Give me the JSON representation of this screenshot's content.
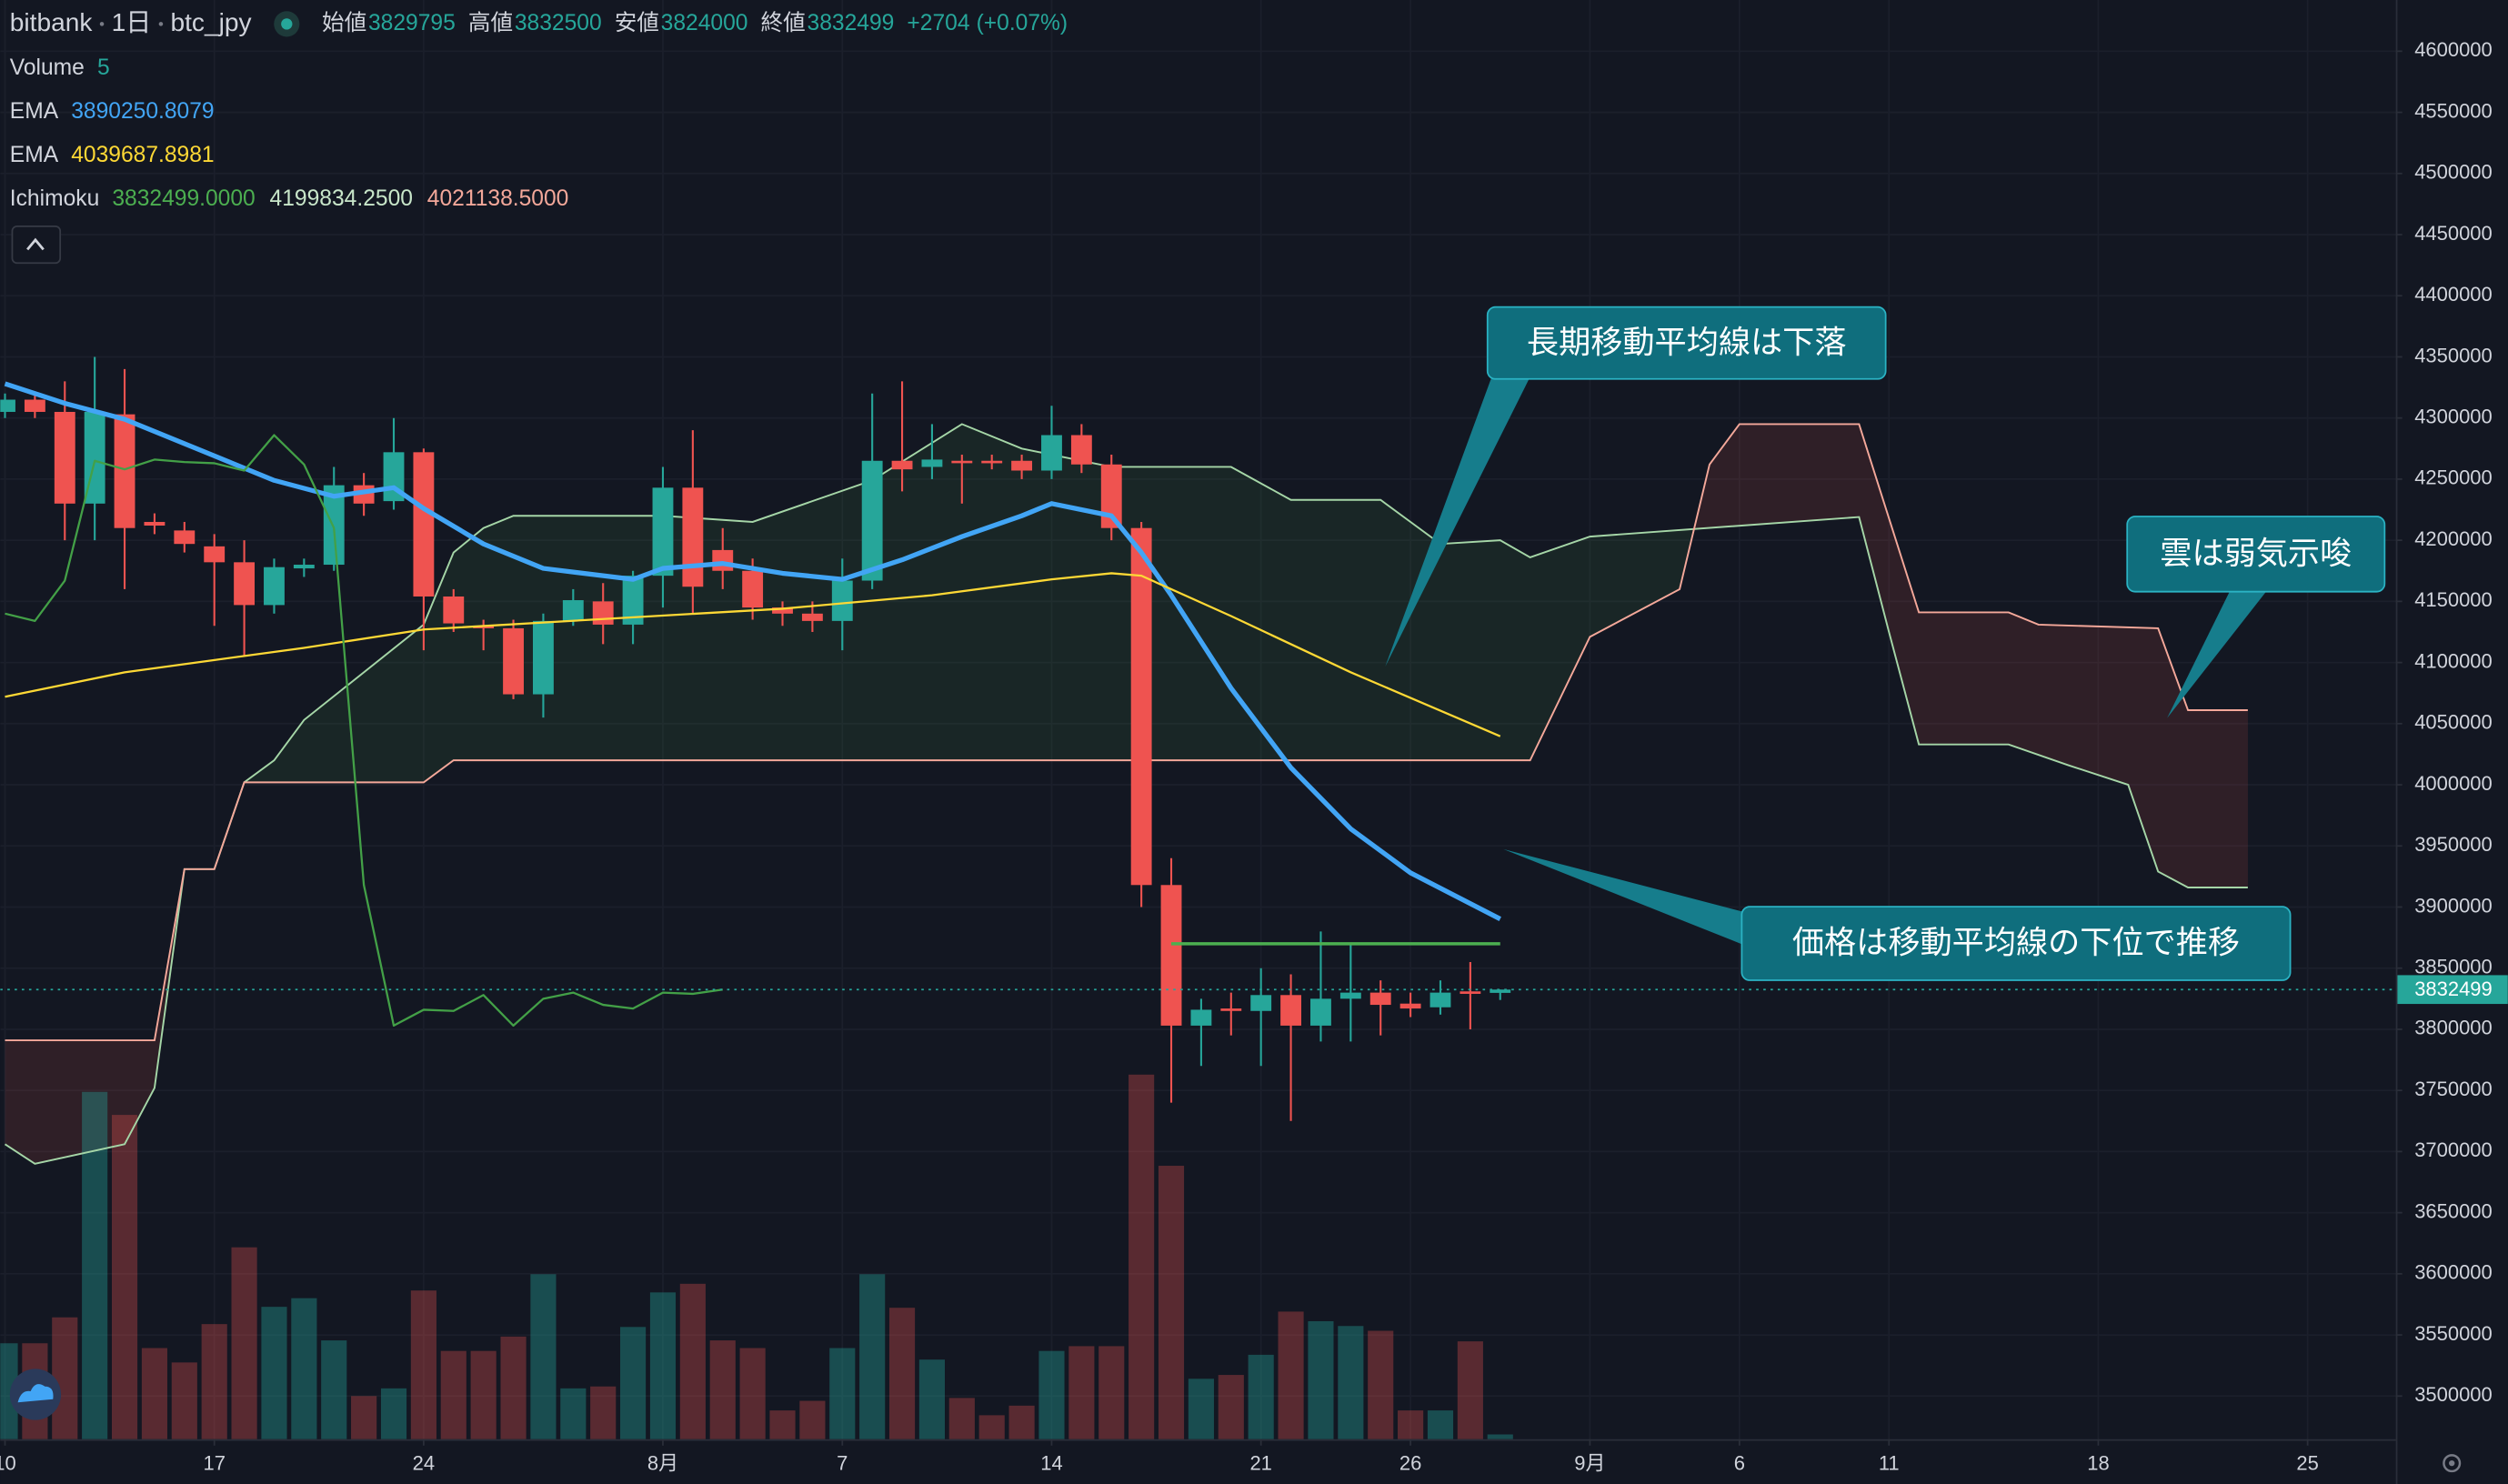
{
  "chart_data": {
    "type": "candlestick",
    "header": {
      "symbol": "bitbank",
      "interval": "1日",
      "pair": "btc_jpy",
      "ohlc": [
        {
          "name": "始値",
          "value": 3829795
        },
        {
          "name": "高値",
          "value": 3832500
        },
        {
          "name": "安値",
          "value": 3824000
        },
        {
          "name": "終値",
          "value": 3832499
        }
      ],
      "change": {
        "value": 2704,
        "label": "+2704"
      },
      "change_pct": {
        "value": 0.07,
        "label": "(+0.07%)"
      }
    },
    "indicators": [
      {
        "name": "Volume",
        "values": [
          5
        ],
        "colors": [
          "#26a69a"
        ]
      },
      {
        "name": "EMA",
        "values": [
          {
            "value": 3890250.8079,
            "label": "3890250.8079"
          }
        ],
        "colors": [
          "#42a5f5"
        ]
      },
      {
        "name": "EMA",
        "values": [
          {
            "value": 4039687.8981,
            "label": "4039687.8981"
          }
        ],
        "colors": [
          "#fdd835"
        ]
      },
      {
        "name": "Ichimoku",
        "values": [
          {
            "value": 3832499,
            "label": "3832499.0000"
          },
          {
            "value": 4199834.25,
            "label": "4199834.2500"
          },
          {
            "value": 4021138.5,
            "label": "4021138.5000"
          }
        ],
        "colors": [
          "#4caf50",
          "#c8e6c9",
          "#f4a89a"
        ]
      }
    ],
    "x": [
      10,
      11,
      12,
      13,
      14,
      15,
      16,
      17,
      18,
      19,
      20,
      21,
      22,
      23,
      24,
      25,
      26,
      27,
      28,
      29,
      30,
      31,
      32,
      33,
      34,
      35,
      36,
      37,
      38,
      39,
      40,
      41,
      42,
      43,
      44,
      45,
      46,
      47,
      48,
      49,
      50,
      51,
      52,
      53,
      54,
      55,
      56,
      57,
      58,
      59,
      60
    ],
    "open": [
      4305000,
      4315000,
      4305000,
      4230000,
      4303000,
      4215000,
      4208000,
      4195000,
      4182000,
      4147000,
      4177000,
      4180000,
      4245000,
      4232000,
      4272000,
      4154000,
      4130000,
      4128000,
      4074000,
      4134000,
      4150000,
      4131000,
      4171000,
      4243000,
      4192000,
      4175000,
      4145000,
      4140000,
      4134000,
      4167000,
      4265000,
      4260000,
      4265000,
      4265000,
      4265000,
      4257000,
      4286000,
      4262000,
      4210000,
      3918000,
      3803000,
      3817000,
      3815000,
      3828000,
      3803000,
      3825000,
      3830000,
      3821000,
      3818000,
      3831000,
      3829795
    ],
    "high": [
      4320000,
      4320000,
      4330000,
      4350000,
      4340000,
      4222000,
      4215000,
      4205000,
      4200000,
      4185000,
      4185000,
      4260000,
      4255000,
      4300000,
      4275000,
      4160000,
      4135000,
      4135000,
      4140000,
      4160000,
      4165000,
      4175000,
      4260000,
      4290000,
      4210000,
      4185000,
      4150000,
      4150000,
      4185000,
      4320000,
      4330000,
      4295000,
      4270000,
      4270000,
      4270000,
      4310000,
      4295000,
      4270000,
      4215000,
      3940000,
      3825000,
      3830000,
      3850000,
      3845000,
      3880000,
      3870000,
      3840000,
      3830000,
      3840000,
      3855000,
      3832500
    ],
    "low": [
      4300000,
      4300000,
      4200000,
      4200000,
      4160000,
      4205000,
      4190000,
      4130000,
      4105000,
      4140000,
      4170000,
      4175000,
      4220000,
      4225000,
      4110000,
      4125000,
      4110000,
      4070000,
      4055000,
      4130000,
      4115000,
      4115000,
      4145000,
      4140000,
      4160000,
      4135000,
      4130000,
      4125000,
      4110000,
      4160000,
      4240000,
      4250000,
      4230000,
      4258000,
      4250000,
      4250000,
      4255000,
      4200000,
      3900000,
      3740000,
      3770000,
      3795000,
      3770000,
      3725000,
      3790000,
      3790000,
      3795000,
      3810000,
      3812000,
      3800000,
      3824000
    ],
    "close": [
      4315000,
      4305000,
      4230000,
      4305000,
      4210000,
      4212000,
      4197000,
      4182000,
      4147000,
      4178000,
      4180000,
      4245000,
      4230000,
      4272000,
      4154000,
      4132000,
      4128000,
      4074000,
      4134000,
      4151000,
      4131000,
      4171000,
      4243000,
      4162000,
      4175000,
      4145000,
      4140000,
      4134000,
      4167000,
      4265000,
      4258000,
      4266000,
      4264000,
      4263000,
      4257000,
      4286000,
      4262000,
      4210000,
      3918000,
      3803000,
      3816000,
      3815000,
      3828000,
      3803000,
      3825000,
      3830000,
      3820000,
      3817000,
      3830000,
      3829000,
      3832499
    ],
    "volume": [
      100,
      100,
      127,
      362,
      338,
      95,
      80,
      120,
      200,
      138,
      147,
      103,
      45,
      53,
      155,
      92,
      92,
      107,
      172,
      53,
      55,
      117,
      153,
      162,
      103,
      95,
      30,
      40,
      95,
      172,
      137,
      83,
      43,
      25,
      35,
      92,
      97,
      97,
      380,
      285,
      63,
      67,
      88,
      133,
      123,
      118,
      113,
      30,
      30,
      102,
      5
    ],
    "up_color": "#26a69a",
    "down_color": "#ef5350",
    "volume_up_color": "rgba(38,166,154,0.38)",
    "volume_down_color": "rgba(239,83,80,0.32)",
    "volume_lim": [
      0,
      1500
    ],
    "lines": [
      {
        "color": "#42a5f5",
        "width": 3,
        "x": [
          10,
          12,
          14,
          17,
          19,
          21,
          23,
          24,
          26,
          28,
          31,
          32,
          34,
          36,
          38,
          40,
          42,
          44,
          45,
          47,
          48,
          49,
          51,
          53,
          55,
          57,
          60
        ],
        "values": [
          4328000,
          4312000,
          4299000,
          4269000,
          4249000,
          4236000,
          4243000,
          4226000,
          4197000,
          4177000,
          4168000,
          4177000,
          4181000,
          4173000,
          4168000,
          4184000,
          4203000,
          4220000,
          4230000,
          4220000,
          4190000,
          4155000,
          4079000,
          4014000,
          3964000,
          3928000,
          3890251
        ]
      },
      {
        "color": "#fdd835",
        "width": 1.3,
        "x": [
          10,
          14,
          20,
          24,
          31,
          36,
          41,
          45,
          47,
          48,
          51,
          55,
          60
        ],
        "values": [
          4072000,
          4092000,
          4112000,
          4127000,
          4137000,
          4144000,
          4155000,
          4168000,
          4173000,
          4171000,
          4138000,
          4092000,
          4039688
        ]
      },
      {
        "color": "#43a047",
        "width": 1.3,
        "x": [
          10,
          11,
          12,
          13,
          14,
          15,
          16,
          17,
          18,
          19,
          20,
          21,
          22,
          23,
          24,
          25,
          26,
          27,
          28,
          29,
          30,
          31,
          32,
          33,
          34
        ],
        "values": [
          4140000,
          4134000,
          4167000,
          4265000,
          4258000,
          4266000,
          4264000,
          4263000,
          4257000,
          4286000,
          4262000,
          4210000,
          3918000,
          3803000,
          3816000,
          3815000,
          3828000,
          3803000,
          3825000,
          3830000,
          3820000,
          3817000,
          3830000,
          3829000,
          3832499
        ]
      },
      {
        "color": "#4caf50",
        "width": 2,
        "x": [
          49,
          60
        ],
        "values": [
          3870000,
          3870000
        ]
      }
    ],
    "cloud": {
      "span_a": {
        "color": "#a5d6a7",
        "x": [
          10,
          11,
          14,
          15,
          16,
          17,
          18,
          19,
          20,
          24,
          25,
          26,
          27,
          32,
          35,
          39,
          42,
          44,
          47,
          51,
          53,
          56,
          58,
          60,
          61,
          63,
          72,
          73,
          74,
          77,
          79,
          81,
          82,
          83,
          85
        ],
        "values": [
          3706000,
          3690000,
          3706000,
          3752000,
          3931000,
          3931000,
          4002000,
          4020000,
          4053000,
          4131000,
          4190000,
          4210000,
          4220000,
          4220000,
          4215000,
          4249000,
          4295000,
          4275000,
          4260000,
          4260000,
          4233000,
          4233000,
          4197000,
          4200000,
          4186000,
          4203000,
          4219000,
          4125000,
          4033000,
          4033000,
          4016000,
          4000000,
          3929000,
          3916000,
          3916000
        ]
      },
      "span_b": {
        "color": "#f4a89a",
        "x": [
          10,
          15,
          16,
          17,
          18,
          24,
          25,
          61,
          63,
          66,
          67,
          68,
          72,
          74,
          77,
          78,
          82,
          83,
          85
        ],
        "values": [
          3791000,
          3791000,
          3931000,
          3931000,
          4002000,
          4002000,
          4020000,
          4020000,
          4121000,
          4160000,
          4262000,
          4295000,
          4295000,
          4141000,
          4141000,
          4131000,
          4128000,
          4061000,
          4061000
        ]
      },
      "bull_color": "rgba(76,175,80,0.10)",
      "bear_color": "rgba(239,83,80,0.13)"
    },
    "xlim": [
      9.84,
      89.95
    ],
    "xticks": [
      {
        "value": 10,
        "label": "10"
      },
      17,
      24,
      {
        "value": 32,
        "label": "8月"
      },
      {
        "value": 38,
        "label": "7"
      },
      {
        "value": 45,
        "label": "14"
      },
      {
        "value": 52,
        "label": "21"
      },
      {
        "value": 57,
        "label": "26"
      },
      {
        "value": 63,
        "label": "9月"
      },
      {
        "value": 68,
        "label": "6"
      },
      {
        "value": 73,
        "label": "11"
      },
      {
        "value": 80,
        "label": "18"
      },
      {
        "value": 87,
        "label": "25"
      }
    ],
    "ylim": [
      3464700,
      4641900
    ],
    "yticks": [
      3500000,
      3550000,
      3600000,
      3650000,
      3700000,
      3750000,
      3800000,
      3850000,
      3900000,
      3950000,
      4000000,
      4050000,
      4100000,
      4150000,
      4200000,
      4250000,
      4300000,
      4350000,
      4400000,
      4450000,
      4500000,
      4550000,
      4600000
    ],
    "grid": true,
    "annotations": [
      "長期移動平均線は下落",
      "雲は弱気示唆",
      "価格は移動平均線の下位で推移"
    ]
  }
}
